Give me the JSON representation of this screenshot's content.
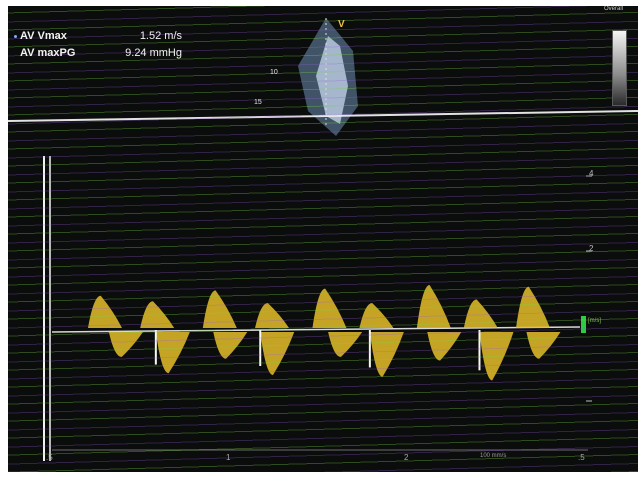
{
  "measurements": {
    "vmax_label": "AV Vmax",
    "vmax_value": "1.52 m/s",
    "maxpg_label": "AV maxPG",
    "maxpg_value": "9.24 mmHg"
  },
  "image_header": {
    "quality_label": "Overall",
    "v_marker": "V"
  },
  "depth_scale": {
    "depth_10": "10",
    "depth_15": "15"
  },
  "velocity_scale": {
    "tick_4": "4",
    "tick_2": "2"
  },
  "baseline_tag": "[m/s]",
  "time_axis": {
    "t_05": ".5",
    "t_1": "1",
    "t_2": "2",
    "t_05b": ".5",
    "speed_label": "100 mm/s"
  },
  "colors": {
    "background": "#0b0c0c",
    "doppler_spectrum": "#e6c02a",
    "baseline_marker": "#2ecc40",
    "scanline_green": "#78d23c",
    "scanline_purple": "#965adc",
    "text": "#f2f2f2"
  },
  "icons": {
    "scale_bar": "grayscale-bar",
    "sector": "2d-sector-image"
  },
  "spectrum": {
    "positive_beats": [
      {
        "t": 0.09,
        "peak": 0.38
      },
      {
        "t": 0.19,
        "peak": 0.32
      },
      {
        "t": 0.31,
        "peak": 0.44
      },
      {
        "t": 0.41,
        "peak": 0.3
      },
      {
        "t": 0.52,
        "peak": 0.46
      },
      {
        "t": 0.61,
        "peak": 0.3
      },
      {
        "t": 0.72,
        "peak": 0.5
      },
      {
        "t": 0.81,
        "peak": 0.34
      },
      {
        "t": 0.91,
        "peak": 0.48
      }
    ],
    "negative_beats": [
      {
        "t": 0.13,
        "peak": 0.3
      },
      {
        "t": 0.22,
        "peak": 0.48
      },
      {
        "t": 0.33,
        "peak": 0.32
      },
      {
        "t": 0.42,
        "peak": 0.5
      },
      {
        "t": 0.55,
        "peak": 0.3
      },
      {
        "t": 0.63,
        "peak": 0.52
      },
      {
        "t": 0.74,
        "peak": 0.34
      },
      {
        "t": 0.84,
        "peak": 0.56
      },
      {
        "t": 0.93,
        "peak": 0.32
      }
    ]
  }
}
